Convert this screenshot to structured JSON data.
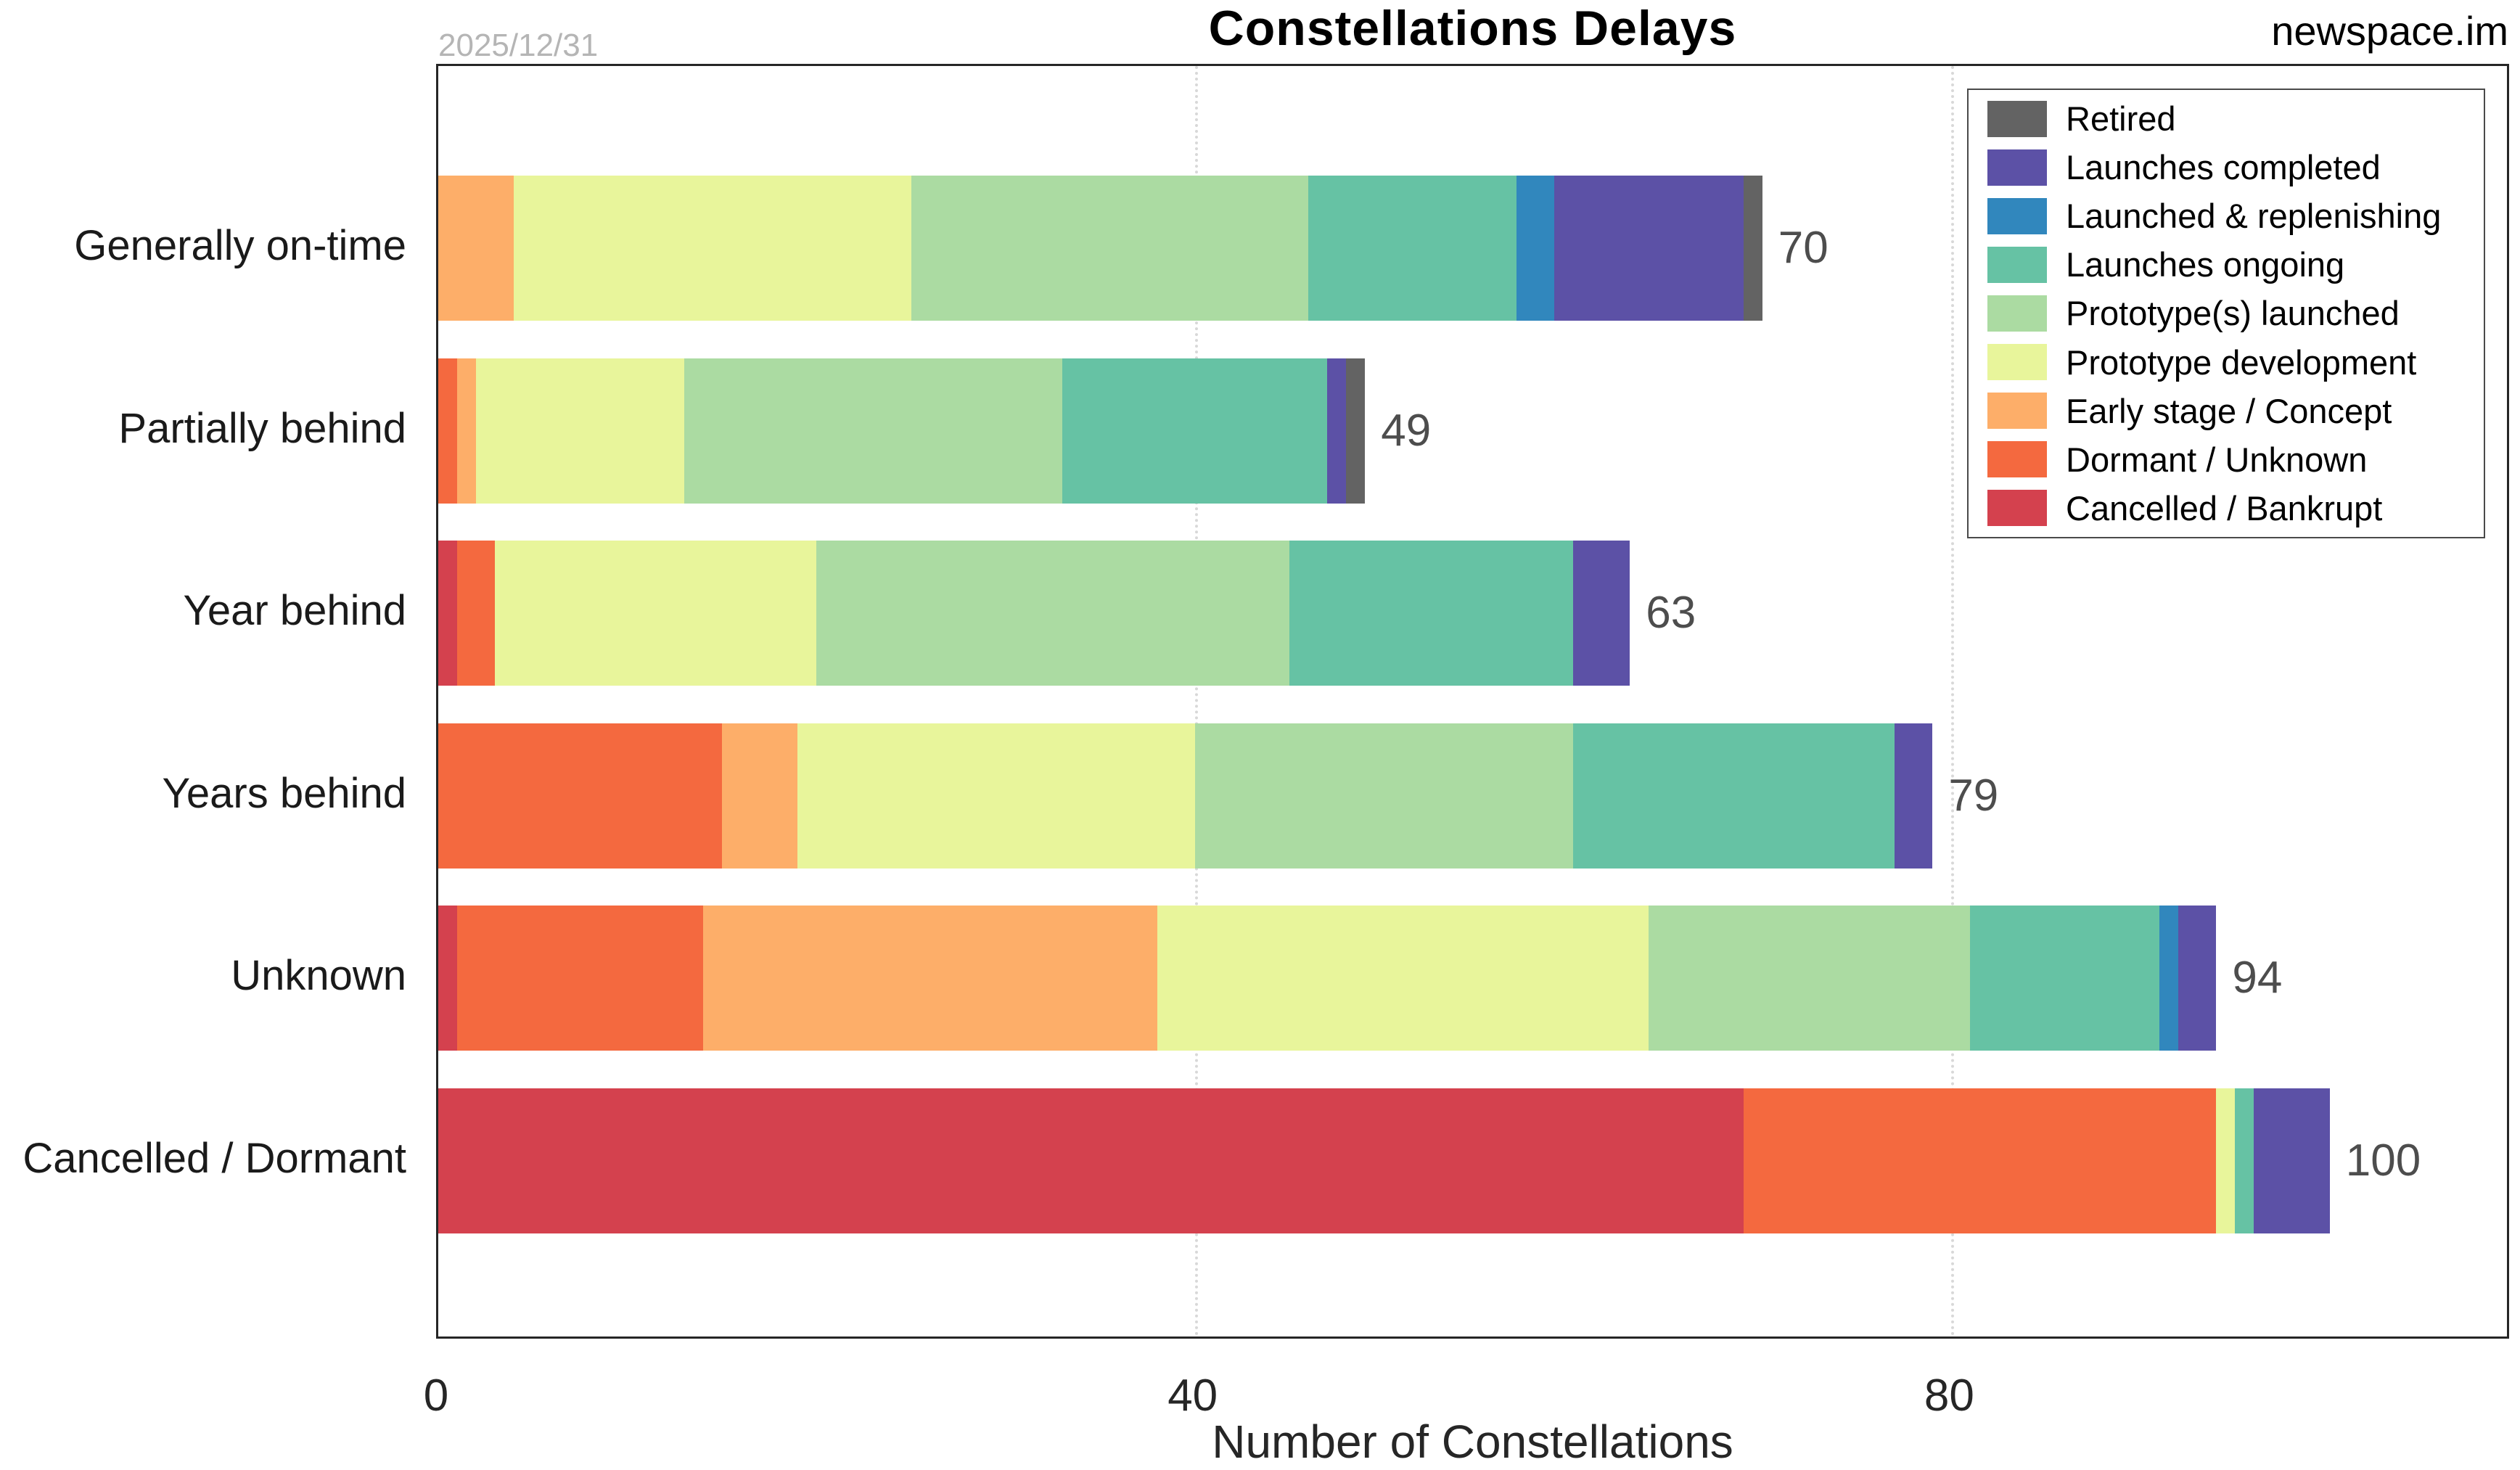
{
  "chart_data": {
    "type": "bar",
    "orientation": "horizontal",
    "stacked": true,
    "title": "Constellations Delays",
    "date_annotation": "2025/12/31",
    "watermark": "newspace.im",
    "xlabel": "Number of Constellations",
    "xticks": [
      0,
      40,
      80
    ],
    "xlim": [
      0,
      109.6
    ],
    "grid": "vertical dotted gridlines at ticks",
    "legend_position": "top-right inside plot, reverse of stack order",
    "categories": [
      "Generally on-time",
      "Partially behind",
      "Year behind",
      "Years behind",
      "Unknown",
      "Cancelled / Dormant"
    ],
    "totals": [
      70,
      49,
      63,
      79,
      94,
      100
    ],
    "series": [
      {
        "name": "Cancelled / Bankrupt",
        "color": "#d4414e",
        "values": [
          0,
          0,
          1,
          0,
          1,
          69
        ]
      },
      {
        "name": "Dormant / Unknown",
        "color": "#f4693f",
        "values": [
          0,
          1,
          2,
          15,
          13,
          25
        ]
      },
      {
        "name": "Early stage / Concept",
        "color": "#fdae69",
        "values": [
          4,
          1,
          0,
          4,
          24,
          0
        ]
      },
      {
        "name": "Prototype development",
        "color": "#e8f59b",
        "values": [
          21,
          11,
          17,
          21,
          26,
          1
        ]
      },
      {
        "name": "Prototype(s) launched",
        "color": "#abdba2",
        "values": [
          21,
          20,
          25,
          20,
          17,
          0
        ]
      },
      {
        "name": "Launches ongoing",
        "color": "#66c2a4",
        "values": [
          11,
          14,
          15,
          17,
          10,
          1
        ]
      },
      {
        "name": "Launched & replenishing",
        "color": "#3187bd",
        "values": [
          2,
          0,
          0,
          0,
          1,
          0
        ]
      },
      {
        "name": "Launches completed",
        "color": "#5c51a6",
        "values": [
          10,
          1,
          3,
          2,
          2,
          4
        ]
      },
      {
        "name": "Retired",
        "color": "#636363",
        "values": [
          1,
          1,
          0,
          0,
          0,
          0
        ]
      }
    ]
  }
}
